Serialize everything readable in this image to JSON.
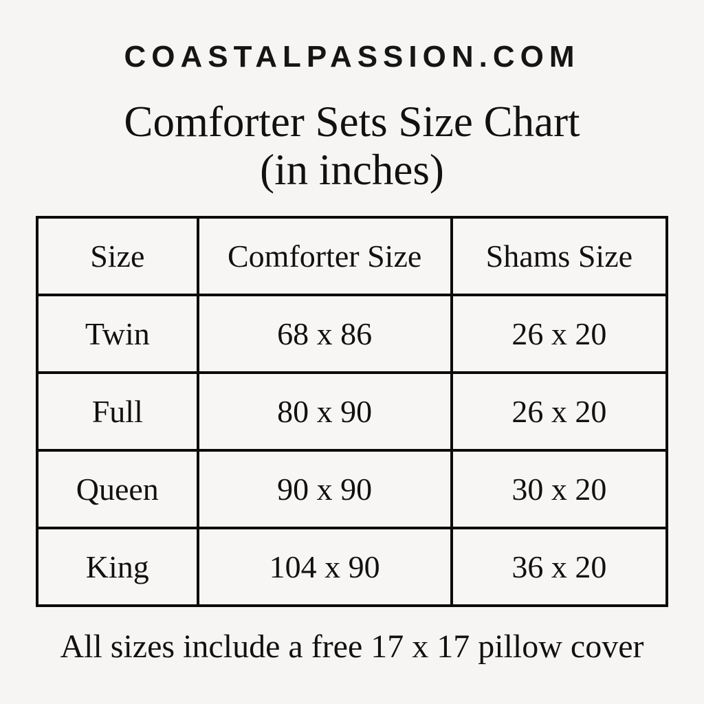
{
  "page": {
    "background_color": "#f6f5f3",
    "text_color": "#111111"
  },
  "header": {
    "site_name": "COASTALPASSION.COM"
  },
  "title": {
    "line1": "Comforter Sets Size Chart",
    "line2": "(in inches)"
  },
  "table": {
    "columns": [
      "Size",
      "Comforter Size",
      "Shams Size"
    ],
    "rows": [
      {
        "size": "Twin",
        "comforter": "68 x 86",
        "shams": "26 x 20"
      },
      {
        "size": "Full",
        "comforter": "80 x 90",
        "shams": "26 x 20"
      },
      {
        "size": "Queen",
        "comforter": "90 x 90",
        "shams": "30 x 20"
      },
      {
        "size": "King",
        "comforter": "104 x 90",
        "shams": "36 x 20"
      }
    ]
  },
  "footer": {
    "note": "All sizes include a free 17 x 17 pillow cover"
  },
  "chart_data": {
    "type": "table",
    "title": "Comforter Sets Size Chart (in inches)",
    "columns": [
      "Size",
      "Comforter Size",
      "Shams Size"
    ],
    "rows": [
      [
        "Twin",
        "68 x 86",
        "26 x 20"
      ],
      [
        "Full",
        "80 x 90",
        "26 x 20"
      ],
      [
        "Queen",
        "90 x 90",
        "30 x 20"
      ],
      [
        "King",
        "104 x 90",
        "36 x 20"
      ]
    ],
    "note": "All sizes include a free 17 x 17 pillow cover"
  }
}
